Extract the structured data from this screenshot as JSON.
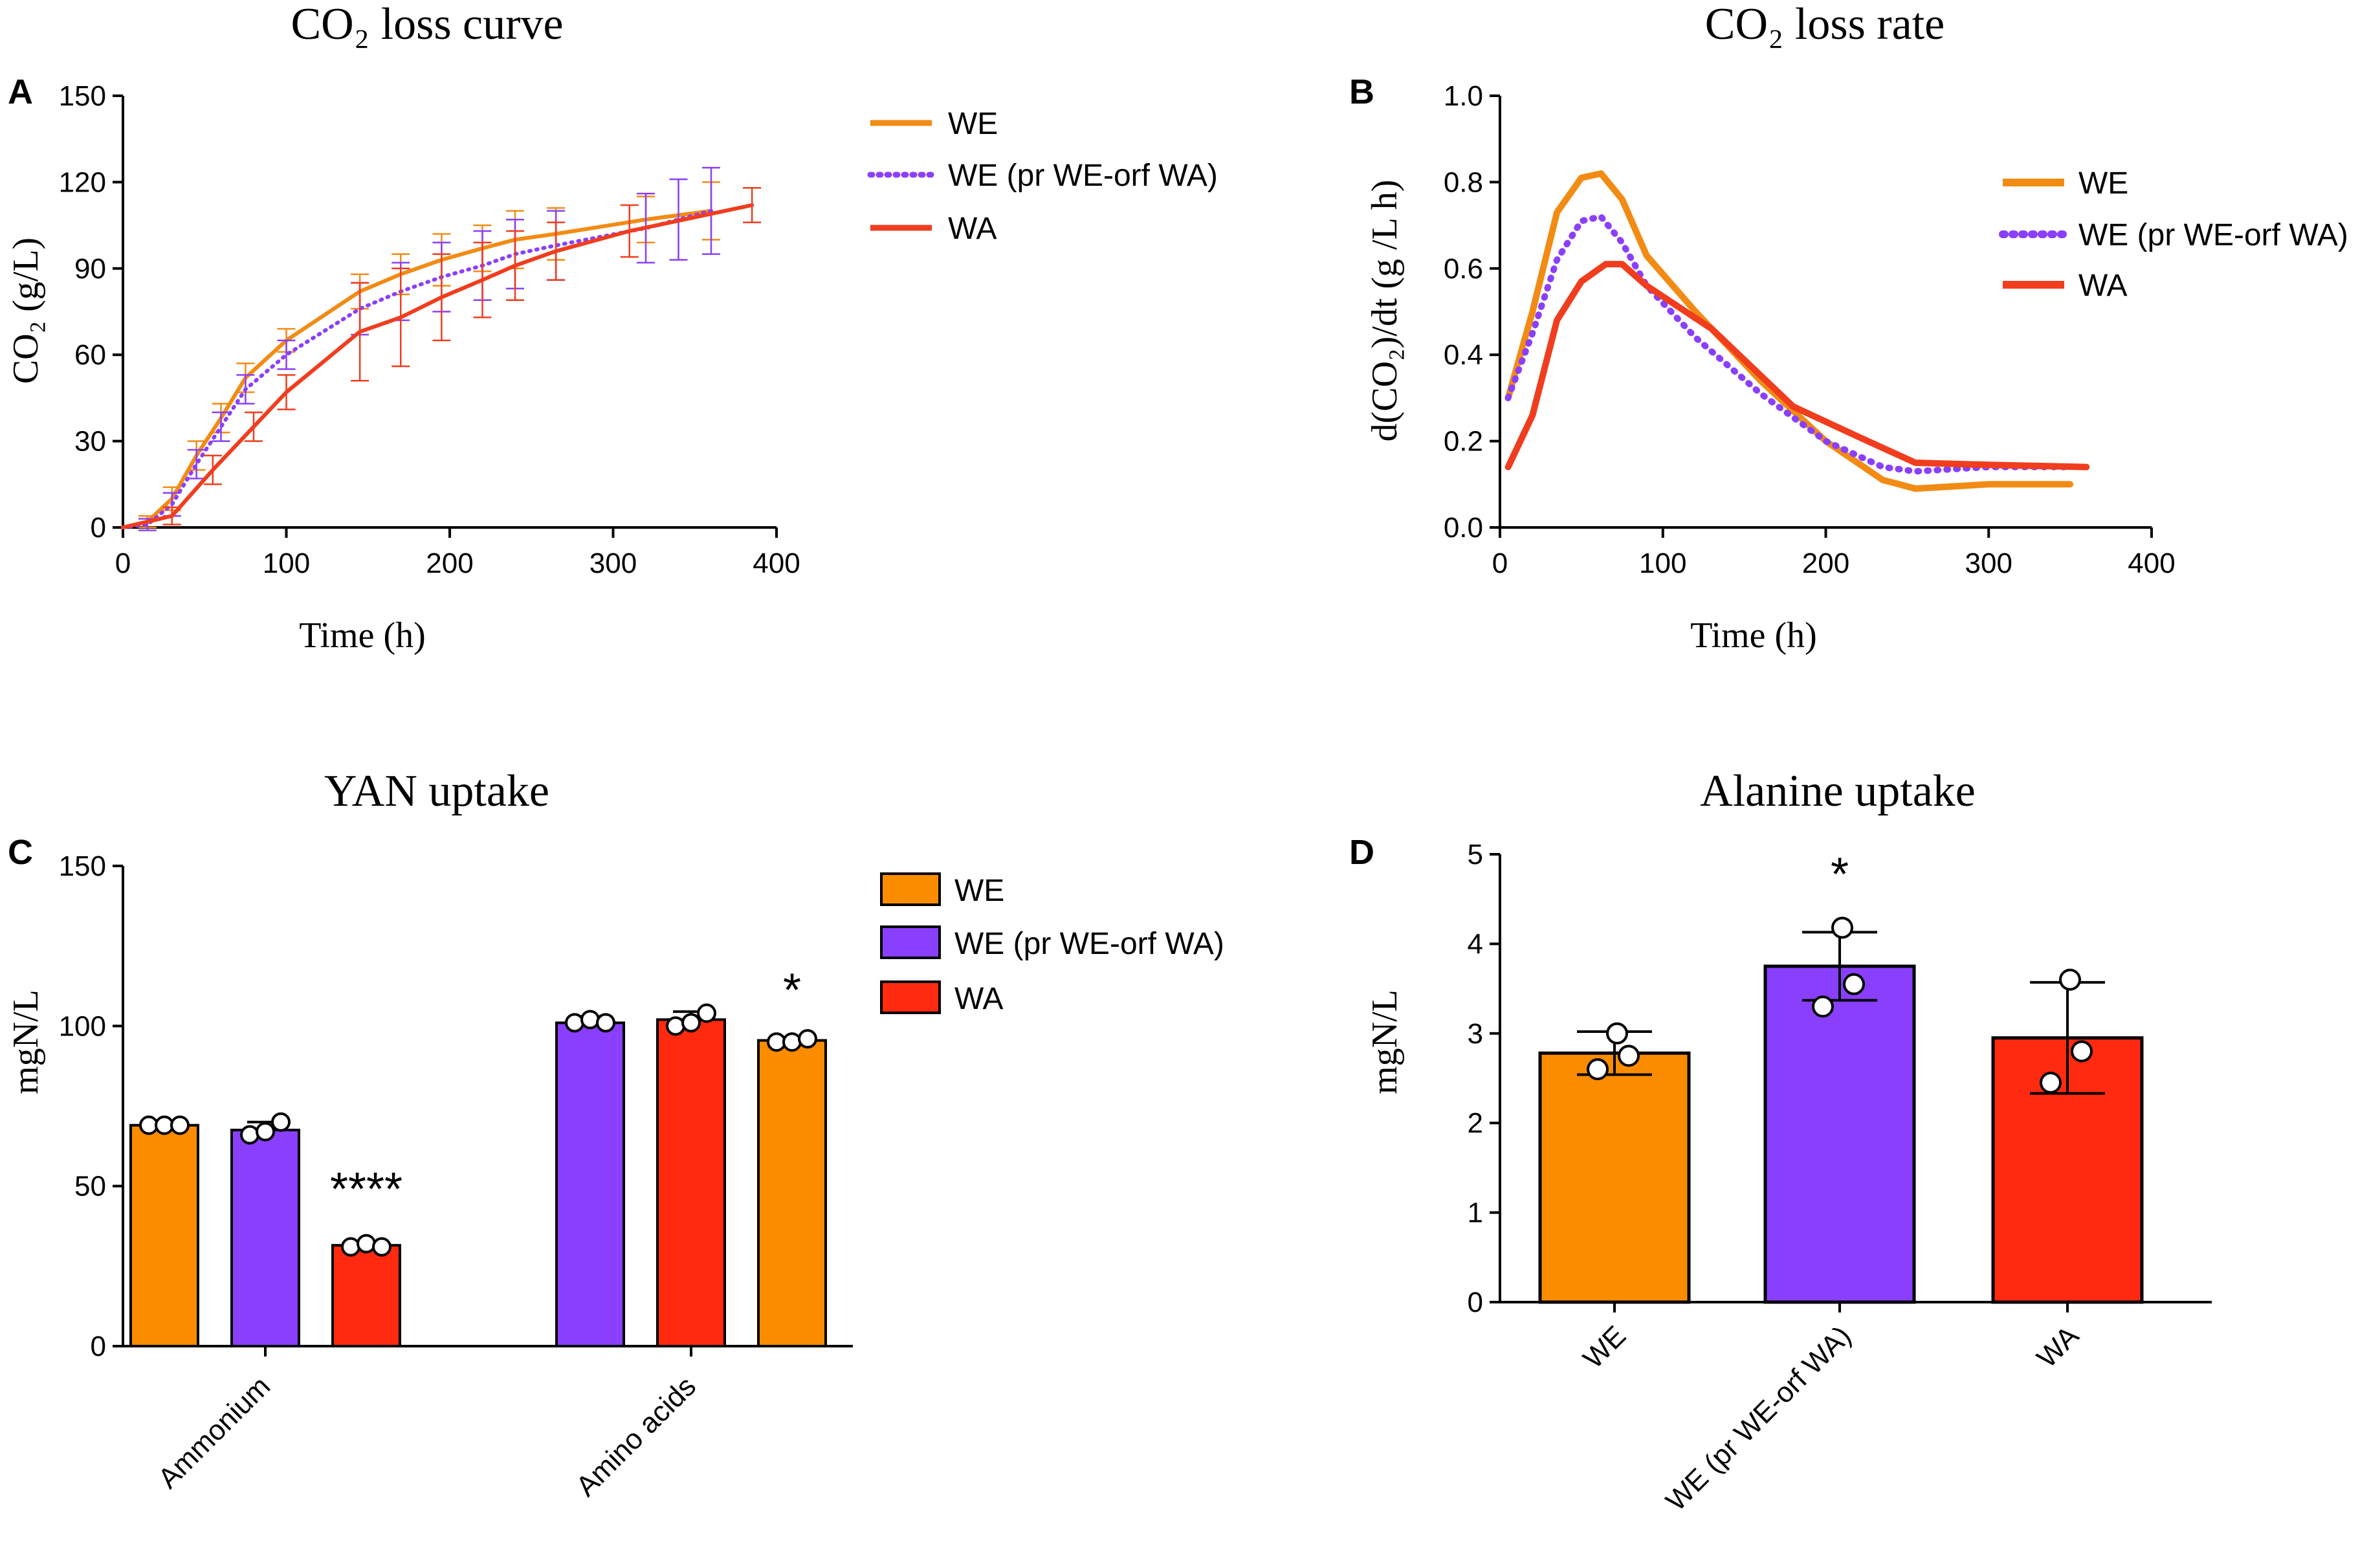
{
  "chart_data": [
    {
      "panel": "A",
      "type": "line",
      "title": "CO₂ loss curve",
      "xlabel": "Time (h)",
      "ylabel": "CO₂ (g/L)",
      "xlim": [
        0,
        400
      ],
      "ylim": [
        0,
        150
      ],
      "xticks": [
        0,
        100,
        200,
        300,
        400
      ],
      "yticks": [
        0,
        30,
        60,
        90,
        120,
        150
      ],
      "series": [
        {
          "name": "WE",
          "color": "#f28b14",
          "style": "solid",
          "x": [
            0,
            15,
            30,
            45,
            60,
            75,
            100,
            145,
            170,
            195,
            220,
            240,
            265,
            320,
            360
          ],
          "y": [
            0,
            2,
            10,
            25,
            38,
            52,
            65,
            82,
            88,
            93,
            97,
            100,
            102,
            107,
            110
          ],
          "err": [
            0,
            2,
            4,
            5,
            5,
            5,
            4,
            6,
            7,
            9,
            8,
            10,
            9,
            8,
            10
          ]
        },
        {
          "name": "WE (pr WE-orf WA)",
          "color": "#8a3ffc",
          "style": "dotted",
          "x": [
            0,
            15,
            30,
            45,
            60,
            75,
            100,
            145,
            170,
            195,
            220,
            240,
            265,
            320,
            340,
            360
          ],
          "y": [
            0,
            1,
            8,
            22,
            35,
            48,
            60,
            76,
            82,
            87,
            91,
            95,
            98,
            104,
            107,
            110
          ],
          "err": [
            0,
            2,
            4,
            5,
            5,
            5,
            5,
            9,
            10,
            12,
            12,
            12,
            12,
            12,
            14,
            15
          ]
        },
        {
          "name": "WA",
          "color": "#f03d1e",
          "style": "solid",
          "x": [
            0,
            30,
            55,
            80,
            100,
            145,
            170,
            195,
            220,
            240,
            265,
            310,
            385
          ],
          "y": [
            0,
            4,
            20,
            35,
            47,
            68,
            73,
            80,
            86,
            91,
            96,
            103,
            112
          ],
          "err": [
            0,
            3,
            5,
            5,
            6,
            17,
            17,
            15,
            13,
            12,
            10,
            9,
            6
          ]
        }
      ]
    },
    {
      "panel": "B",
      "type": "line",
      "title": "CO₂ loss rate",
      "xlabel": "Time (h)",
      "ylabel": "d(CO₂)/dt (g /L h)",
      "xlim": [
        0,
        400
      ],
      "ylim": [
        0,
        1.0
      ],
      "xticks": [
        0,
        100,
        200,
        300,
        400
      ],
      "yticks": [
        0.0,
        0.2,
        0.4,
        0.6,
        0.8,
        1.0
      ],
      "series": [
        {
          "name": "WE",
          "color": "#f28b14",
          "style": "solid",
          "x": [
            5,
            20,
            35,
            50,
            62,
            75,
            90,
            120,
            160,
            200,
            235,
            255,
            300,
            350
          ],
          "y": [
            0.3,
            0.5,
            0.73,
            0.81,
            0.82,
            0.76,
            0.63,
            0.5,
            0.34,
            0.2,
            0.11,
            0.09,
            0.1,
            0.1
          ]
        },
        {
          "name": "WE (pr WE-orf WA)",
          "color": "#8a3ffc",
          "style": "dotted",
          "x": [
            5,
            20,
            35,
            50,
            62,
            75,
            90,
            120,
            160,
            200,
            235,
            255,
            300,
            350
          ],
          "y": [
            0.3,
            0.45,
            0.62,
            0.71,
            0.72,
            0.66,
            0.56,
            0.44,
            0.31,
            0.2,
            0.14,
            0.13,
            0.14,
            0.14
          ]
        },
        {
          "name": "WA",
          "color": "#f03d1e",
          "style": "solid",
          "x": [
            5,
            20,
            35,
            50,
            65,
            75,
            90,
            130,
            180,
            220,
            255,
            300,
            360
          ],
          "y": [
            0.14,
            0.26,
            0.48,
            0.57,
            0.61,
            0.61,
            0.56,
            0.46,
            0.28,
            0.21,
            0.15,
            0.145,
            0.14
          ]
        }
      ]
    },
    {
      "panel": "C",
      "type": "bar",
      "title": "YAN uptake",
      "xlabel": "",
      "ylabel": "mgN/L",
      "ylim": [
        0,
        150
      ],
      "yticks": [
        0,
        50,
        100,
        150
      ],
      "categories": [
        "Ammonium",
        "Amino acids"
      ],
      "series": [
        {
          "name": "WE",
          "color": "#fb8c00",
          "values": [
            69,
            101
          ],
          "err": [
            1,
            2
          ],
          "points": [
            [
              69,
              69,
              69
            ],
            [
              101,
              102,
              101
            ]
          ]
        },
        {
          "name": "WE (pr WE-orf WA)",
          "color": "#8a3ffc",
          "values": [
            67.5,
            102
          ],
          "err": [
            2.5,
            2.5
          ],
          "points": [
            [
              66,
              67,
              70
            ],
            [
              100,
              101,
              104
            ]
          ]
        },
        {
          "name": "WA",
          "color": "#ff2a0f",
          "values": [
            31.5,
            95.5
          ],
          "err": [
            1,
            1
          ],
          "points": [
            [
              31,
              32,
              31
            ],
            [
              95,
              95,
              96
            ]
          ]
        }
      ],
      "bar_colors_drawn": [
        [
          "#fb8c00",
          "#8a3ffc",
          "#ff2a0f"
        ],
        [
          "#8a3ffc",
          "#ff2a0f",
          "#fb8c00"
        ]
      ],
      "annotations": [
        "****",
        "*"
      ]
    },
    {
      "panel": "D",
      "type": "bar",
      "title": "Alanine uptake",
      "xlabel": "",
      "ylabel": "mgN/L",
      "ylim": [
        0,
        5
      ],
      "yticks": [
        0,
        1,
        2,
        3,
        4,
        5
      ],
      "categories": [
        "WE",
        "WE (pr WE-orf WA)",
        "WA"
      ],
      "values": [
        2.78,
        3.75,
        2.95
      ],
      "err": [
        0.24,
        0.38,
        0.62
      ],
      "points": [
        [
          2.6,
          2.75,
          3.0
        ],
        [
          3.3,
          3.55,
          4.18
        ],
        [
          2.45,
          2.8,
          3.6
        ]
      ],
      "colors": [
        "#fb8c00",
        "#8a3ffc",
        "#ff2a0f"
      ],
      "annotations": [
        "*"
      ]
    }
  ],
  "legends": {
    "A": [
      "WE",
      "WE (pr WE-orf WA)",
      "WA"
    ],
    "B": [
      "WE",
      "WE (pr WE-orf WA)",
      "WA"
    ],
    "C": [
      "WE",
      "WE (pr WE-orf WA)",
      "WA"
    ]
  },
  "panel_labels": [
    "A",
    "B",
    "C",
    "D"
  ]
}
